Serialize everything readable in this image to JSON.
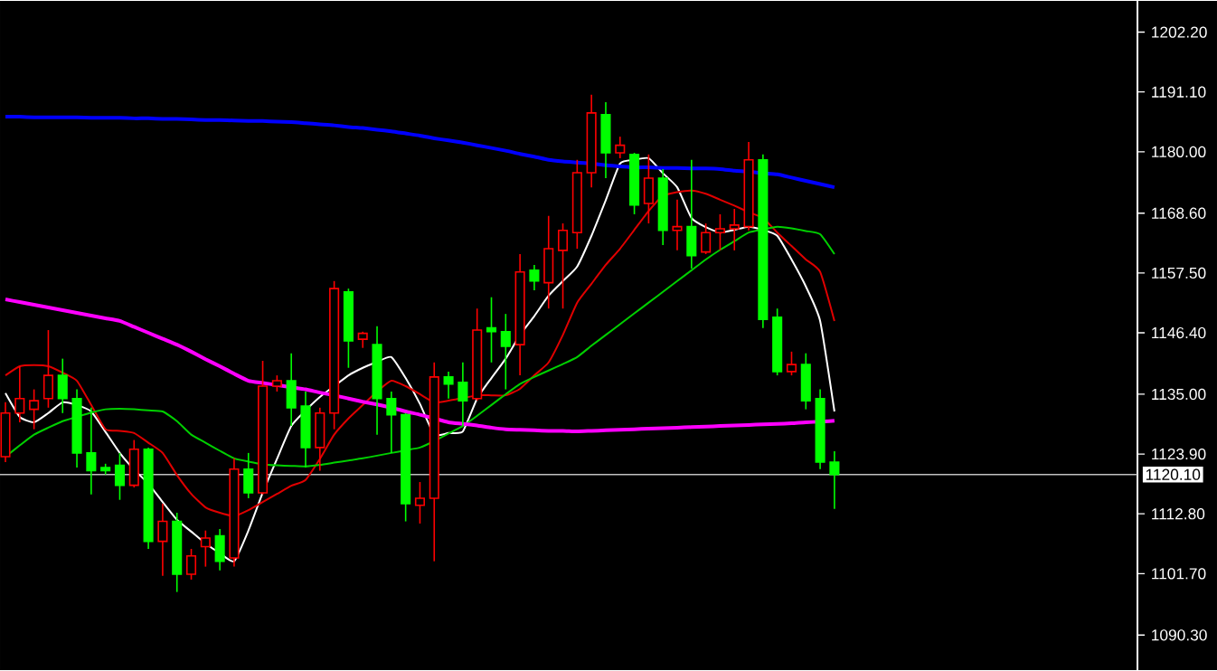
{
  "chart_data": {
    "type": "candlestick",
    "categories": [
      null,
      null,
      null,
      null,
      null,
      null,
      null,
      null,
      null,
      null,
      null,
      null,
      null,
      null,
      null,
      null,
      null,
      null,
      null,
      null,
      null,
      null,
      null,
      null,
      null,
      null,
      null,
      null,
      null,
      null,
      null,
      null,
      null,
      null,
      null,
      null,
      null,
      null,
      null,
      null,
      null,
      null,
      null,
      null,
      null,
      null,
      null,
      null,
      null,
      null,
      null,
      null,
      null,
      null,
      null,
      null,
      null,
      null,
      null
    ],
    "ohlc": [
      [
        1123.4,
        1133.5,
        1122.4,
        1131.5
      ],
      [
        1131.5,
        1140.2,
        1129.8,
        1134.2
      ],
      [
        1132.2,
        1135.9,
        1128.5,
        1133.8
      ],
      [
        1134.2,
        1146.9,
        1132.5,
        1138.5
      ],
      [
        1138.5,
        1141.6,
        1131.5,
        1134.2
      ],
      [
        1134.2,
        1135.9,
        1121.4,
        1124.1
      ],
      [
        1124.1,
        1132.5,
        1116.4,
        1120.8
      ],
      [
        1121.4,
        1122.1,
        1120.1,
        1120.8
      ],
      [
        1121.8,
        1124.1,
        1115.4,
        1118.1
      ],
      [
        1118.1,
        1126.5,
        1117.7,
        1124.8
      ],
      [
        1124.8,
        1125.1,
        1106.3,
        1107.7
      ],
      [
        1107.7,
        1114.7,
        1101.3,
        1111.4
      ],
      [
        1111.4,
        1113.0,
        1098.3,
        1101.6
      ],
      [
        1101.6,
        1106.3,
        1100.6,
        1105.0
      ],
      [
        1106.7,
        1109.7,
        1103.0,
        1108.3
      ],
      [
        1108.7,
        1110.0,
        1102.3,
        1104.0
      ],
      [
        1104.6,
        1123.1,
        1103.0,
        1121.1
      ],
      [
        1121.1,
        1124.1,
        1115.7,
        1116.7
      ],
      [
        1116.7,
        1141.2,
        1116.4,
        1136.5
      ],
      [
        1136.5,
        1138.5,
        1135.5,
        1137.5
      ],
      [
        1137.5,
        1142.6,
        1129.1,
        1132.5
      ],
      [
        1132.8,
        1135.5,
        1121.4,
        1125.1
      ],
      [
        1125.1,
        1132.5,
        1120.8,
        1131.5
      ],
      [
        1131.5,
        1156.0,
        1128.5,
        1154.6
      ],
      [
        1154.0,
        1154.6,
        1139.9,
        1144.9
      ],
      [
        1145.2,
        1146.6,
        1143.6,
        1146.3
      ],
      [
        1144.2,
        1147.6,
        1127.5,
        1134.2
      ],
      [
        1134.2,
        1135.5,
        1124.1,
        1131.2
      ],
      [
        1131.2,
        1131.5,
        1111.4,
        1114.7
      ],
      [
        1114.4,
        1118.7,
        1111.0,
        1115.7
      ],
      [
        1115.7,
        1140.9,
        1104.0,
        1138.2
      ],
      [
        1138.2,
        1139.2,
        1134.2,
        1136.9
      ],
      [
        1137.2,
        1140.9,
        1129.1,
        1133.8
      ],
      [
        1134.2,
        1150.9,
        1133.8,
        1146.9
      ],
      [
        1147.3,
        1153.0,
        1140.9,
        1146.6
      ],
      [
        1146.6,
        1149.9,
        1135.9,
        1143.9
      ],
      [
        1144.2,
        1161.0,
        1138.5,
        1157.7
      ],
      [
        1158.0,
        1159.0,
        1154.3,
        1156.0
      ],
      [
        1155.7,
        1168.1,
        1150.9,
        1162.0
      ],
      [
        1161.7,
        1166.7,
        1150.9,
        1165.4
      ],
      [
        1165.0,
        1178.5,
        1162.0,
        1176.1
      ],
      [
        1176.1,
        1190.6,
        1173.4,
        1187.2
      ],
      [
        1186.9,
        1189.2,
        1175.1,
        1179.8
      ],
      [
        1179.8,
        1182.8,
        1178.8,
        1181.2
      ],
      [
        1179.5,
        1179.8,
        1168.4,
        1170.1
      ],
      [
        1170.4,
        1179.5,
        1166.7,
        1175.1
      ],
      [
        1175.1,
        1176.8,
        1162.7,
        1165.4
      ],
      [
        1165.4,
        1171.1,
        1161.7,
        1166.1
      ],
      [
        1166.1,
        1178.5,
        1158.3,
        1160.7
      ],
      [
        1161.4,
        1166.7,
        1161.0,
        1165.0
      ],
      [
        1165.0,
        1168.4,
        1161.7,
        1165.7
      ],
      [
        1165.7,
        1169.4,
        1161.7,
        1166.4
      ],
      [
        1166.1,
        1181.8,
        1165.4,
        1178.5
      ],
      [
        1178.5,
        1179.5,
        1147.3,
        1148.9
      ],
      [
        1149.3,
        1150.9,
        1138.5,
        1139.2
      ],
      [
        1139.2,
        1142.9,
        1138.5,
        1140.5
      ],
      [
        1140.5,
        1142.6,
        1132.2,
        1133.8
      ],
      [
        1134.2,
        1135.9,
        1121.1,
        1122.4
      ],
      [
        1122.4,
        1124.4,
        1113.7,
        1120.1
      ]
    ],
    "colors": [
      "#ff0000",
      "#ff0000",
      "#ff0000",
      "#ff0000",
      "#00ff00",
      "#00ff00",
      "#00ff00",
      "#00ff00",
      "#00ff00",
      "#ff0000",
      "#00ff00",
      "#ff0000",
      "#00ff00",
      "#ff0000",
      "#ff0000",
      "#00ff00",
      "#ff0000",
      "#00ff00",
      "#ff0000",
      "#ff0000",
      "#00ff00",
      "#00ff00",
      "#ff0000",
      "#ff0000",
      "#00ff00",
      "#ff0000",
      "#00ff00",
      "#00ff00",
      "#00ff00",
      "#ff0000",
      "#ff0000",
      "#00ff00",
      "#00ff00",
      "#ff0000",
      "#00ff00",
      "#00ff00",
      "#ff0000",
      "#00ff00",
      "#ff0000",
      "#ff0000",
      "#ff0000",
      "#ff0000",
      "#00ff00",
      "#ff0000",
      "#00ff00",
      "#ff0000",
      "#00ff00",
      "#ff0000",
      "#00ff00",
      "#ff0000",
      "#ff0000",
      "#ff0000",
      "#ff0000",
      "#00ff00",
      "#00ff00",
      "#ff0000",
      "#00ff00",
      "#00ff00",
      "#00ff00"
    ],
    "series": [
      {
        "type": "line",
        "color": "#ffffff",
        "values": [
          1135.2,
          1130.8,
          1129.8,
          1131.5,
          1133.5,
          1133.0,
          1131.8,
          1128.0,
          1124.1,
          1121.0,
          1118.4,
          1115.0,
          1111.7,
          1109.5,
          1107.3,
          1105.5,
          1104.0,
          1109.7,
          1116.7,
          1123.0,
          1129.1,
          1132.0,
          1134.5,
          1136.5,
          1138.5,
          1139.9,
          1141.0,
          1141.9,
          1138.0,
          1133.2,
          1127.5,
          1127.8,
          1128.1,
          1134.2,
          1138.0,
          1141.6,
          1146.0,
          1149.5,
          1153.3,
          1156.0,
          1158.7,
          1164.4,
          1171.0,
          1177.8,
          1178.5,
          1178.8,
          1176.0,
          1173.4,
          1167.7,
          1166.0,
          1165.0,
          1165.5,
          1166.1,
          1165.5,
          1164.4,
          1160.0,
          1155.0,
          1148.6,
          1131.8
        ]
      },
      {
        "type": "line",
        "color": "#e00000",
        "values": [
          1138.5,
          1140.2,
          1140.4,
          1140.2,
          1139.0,
          1137.5,
          1133.0,
          1128.5,
          1128.2,
          1127.8,
          1126.0,
          1124.1,
          1120.0,
          1116.5,
          1114.0,
          1113.0,
          1112.4,
          1113.5,
          1115.0,
          1116.5,
          1118.0,
          1119.1,
          1123.0,
          1127.5,
          1130.5,
          1133.0,
          1135.5,
          1137.5,
          1136.5,
          1135.0,
          1133.5,
          1133.8,
          1134.3,
          1134.8,
          1134.8,
          1134.8,
          1136.0,
          1138.5,
          1140.9,
          1146.0,
          1152.0,
          1155.5,
          1159.0,
          1162.0,
          1165.5,
          1169.0,
          1171.8,
          1172.5,
          1172.8,
          1172.2,
          1171.1,
          1170.0,
          1168.8,
          1167.7,
          1165.0,
          1162.5,
          1160.0,
          1157.7,
          1148.6
        ]
      },
      {
        "type": "line",
        "color": "#00d000",
        "values": [
          1123.4,
          1125.5,
          1127.5,
          1128.8,
          1130.0,
          1130.8,
          1131.6,
          1132.2,
          1132.3,
          1132.2,
          1132.0,
          1131.8,
          1130.0,
          1127.5,
          1126.0,
          1124.5,
          1123.1,
          1122.5,
          1122.0,
          1121.8,
          1121.7,
          1121.6,
          1121.9,
          1122.3,
          1122.7,
          1123.1,
          1123.6,
          1124.1,
          1124.6,
          1125.1,
          1126.3,
          1127.7,
          1129.1,
          1131.0,
          1133.0,
          1135.0,
          1136.9,
          1138.2,
          1139.4,
          1140.6,
          1141.9,
          1144.0,
          1146.0,
          1148.0,
          1150.0,
          1152.0,
          1154.0,
          1156.0,
          1158.0,
          1160.0,
          1161.8,
          1163.4,
          1165.0,
          1165.6,
          1166.1,
          1165.8,
          1165.3,
          1164.7,
          1161.0
        ]
      },
      {
        "type": "line",
        "color": "#ff00ff",
        "values": [
          1152.6,
          1152.1,
          1151.6,
          1151.1,
          1150.6,
          1150.1,
          1149.6,
          1149.1,
          1148.6,
          1147.5,
          1146.4,
          1145.3,
          1144.2,
          1142.9,
          1141.5,
          1140.2,
          1138.8,
          1137.5,
          1137.1,
          1136.7,
          1136.3,
          1135.9,
          1135.3,
          1134.8,
          1134.2,
          1133.6,
          1133.1,
          1132.5,
          1131.8,
          1131.2,
          1130.5,
          1129.8,
          1129.5,
          1129.2,
          1128.8,
          1128.5,
          1128.4,
          1128.3,
          1128.2,
          1128.2,
          1128.1,
          1128.2,
          1128.3,
          1128.4,
          1128.5,
          1128.6,
          1128.7,
          1128.8,
          1128.9,
          1129.0,
          1129.1,
          1129.2,
          1129.3,
          1129.4,
          1129.5,
          1129.6,
          1129.8,
          1129.9,
          1130.1
        ]
      },
      {
        "type": "line",
        "color": "#0000ff",
        "values": [
          1186.5,
          1186.5,
          1186.4,
          1186.4,
          1186.4,
          1186.4,
          1186.3,
          1186.3,
          1186.3,
          1186.2,
          1186.2,
          1186.1,
          1186.1,
          1186.0,
          1185.9,
          1185.9,
          1185.8,
          1185.7,
          1185.7,
          1185.6,
          1185.5,
          1185.3,
          1185.1,
          1184.9,
          1184.6,
          1184.4,
          1184.1,
          1183.8,
          1183.4,
          1183.0,
          1182.5,
          1182.1,
          1181.7,
          1181.2,
          1180.7,
          1180.2,
          1179.6,
          1179.1,
          1178.5,
          1178.2,
          1178.0,
          1177.8,
          1177.5,
          1177.3,
          1177.1,
          1177.1,
          1177.0,
          1177.0,
          1176.9,
          1176.9,
          1176.8,
          1176.5,
          1176.3,
          1176.0,
          1175.8,
          1175.2,
          1174.6,
          1174.0,
          1173.4
        ]
      }
    ],
    "ylim": [
      1083.8,
      1208.0
    ],
    "yticks": [
      {
        "value": 1090.3,
        "label": "1090.30"
      },
      {
        "value": 1101.7,
        "label": "1101.70"
      },
      {
        "value": 1112.8,
        "label": "1112.80"
      },
      {
        "value": 1123.9,
        "label": "1123.90"
      },
      {
        "value": 1135.0,
        "label": "1135.00"
      },
      {
        "value": 1146.4,
        "label": "1146.40"
      },
      {
        "value": 1157.5,
        "label": "1157.50"
      },
      {
        "value": 1168.6,
        "label": "1168.60"
      },
      {
        "value": 1180.0,
        "label": "1180.00"
      },
      {
        "value": 1191.1,
        "label": "1191.10"
      },
      {
        "value": 1202.2,
        "label": "1202.20"
      }
    ],
    "ref_lines": [
      {
        "axis": "y",
        "value": 1120.1,
        "label": "1120.10",
        "color": "#c0c0c0"
      }
    ],
    "grid": false
  }
}
